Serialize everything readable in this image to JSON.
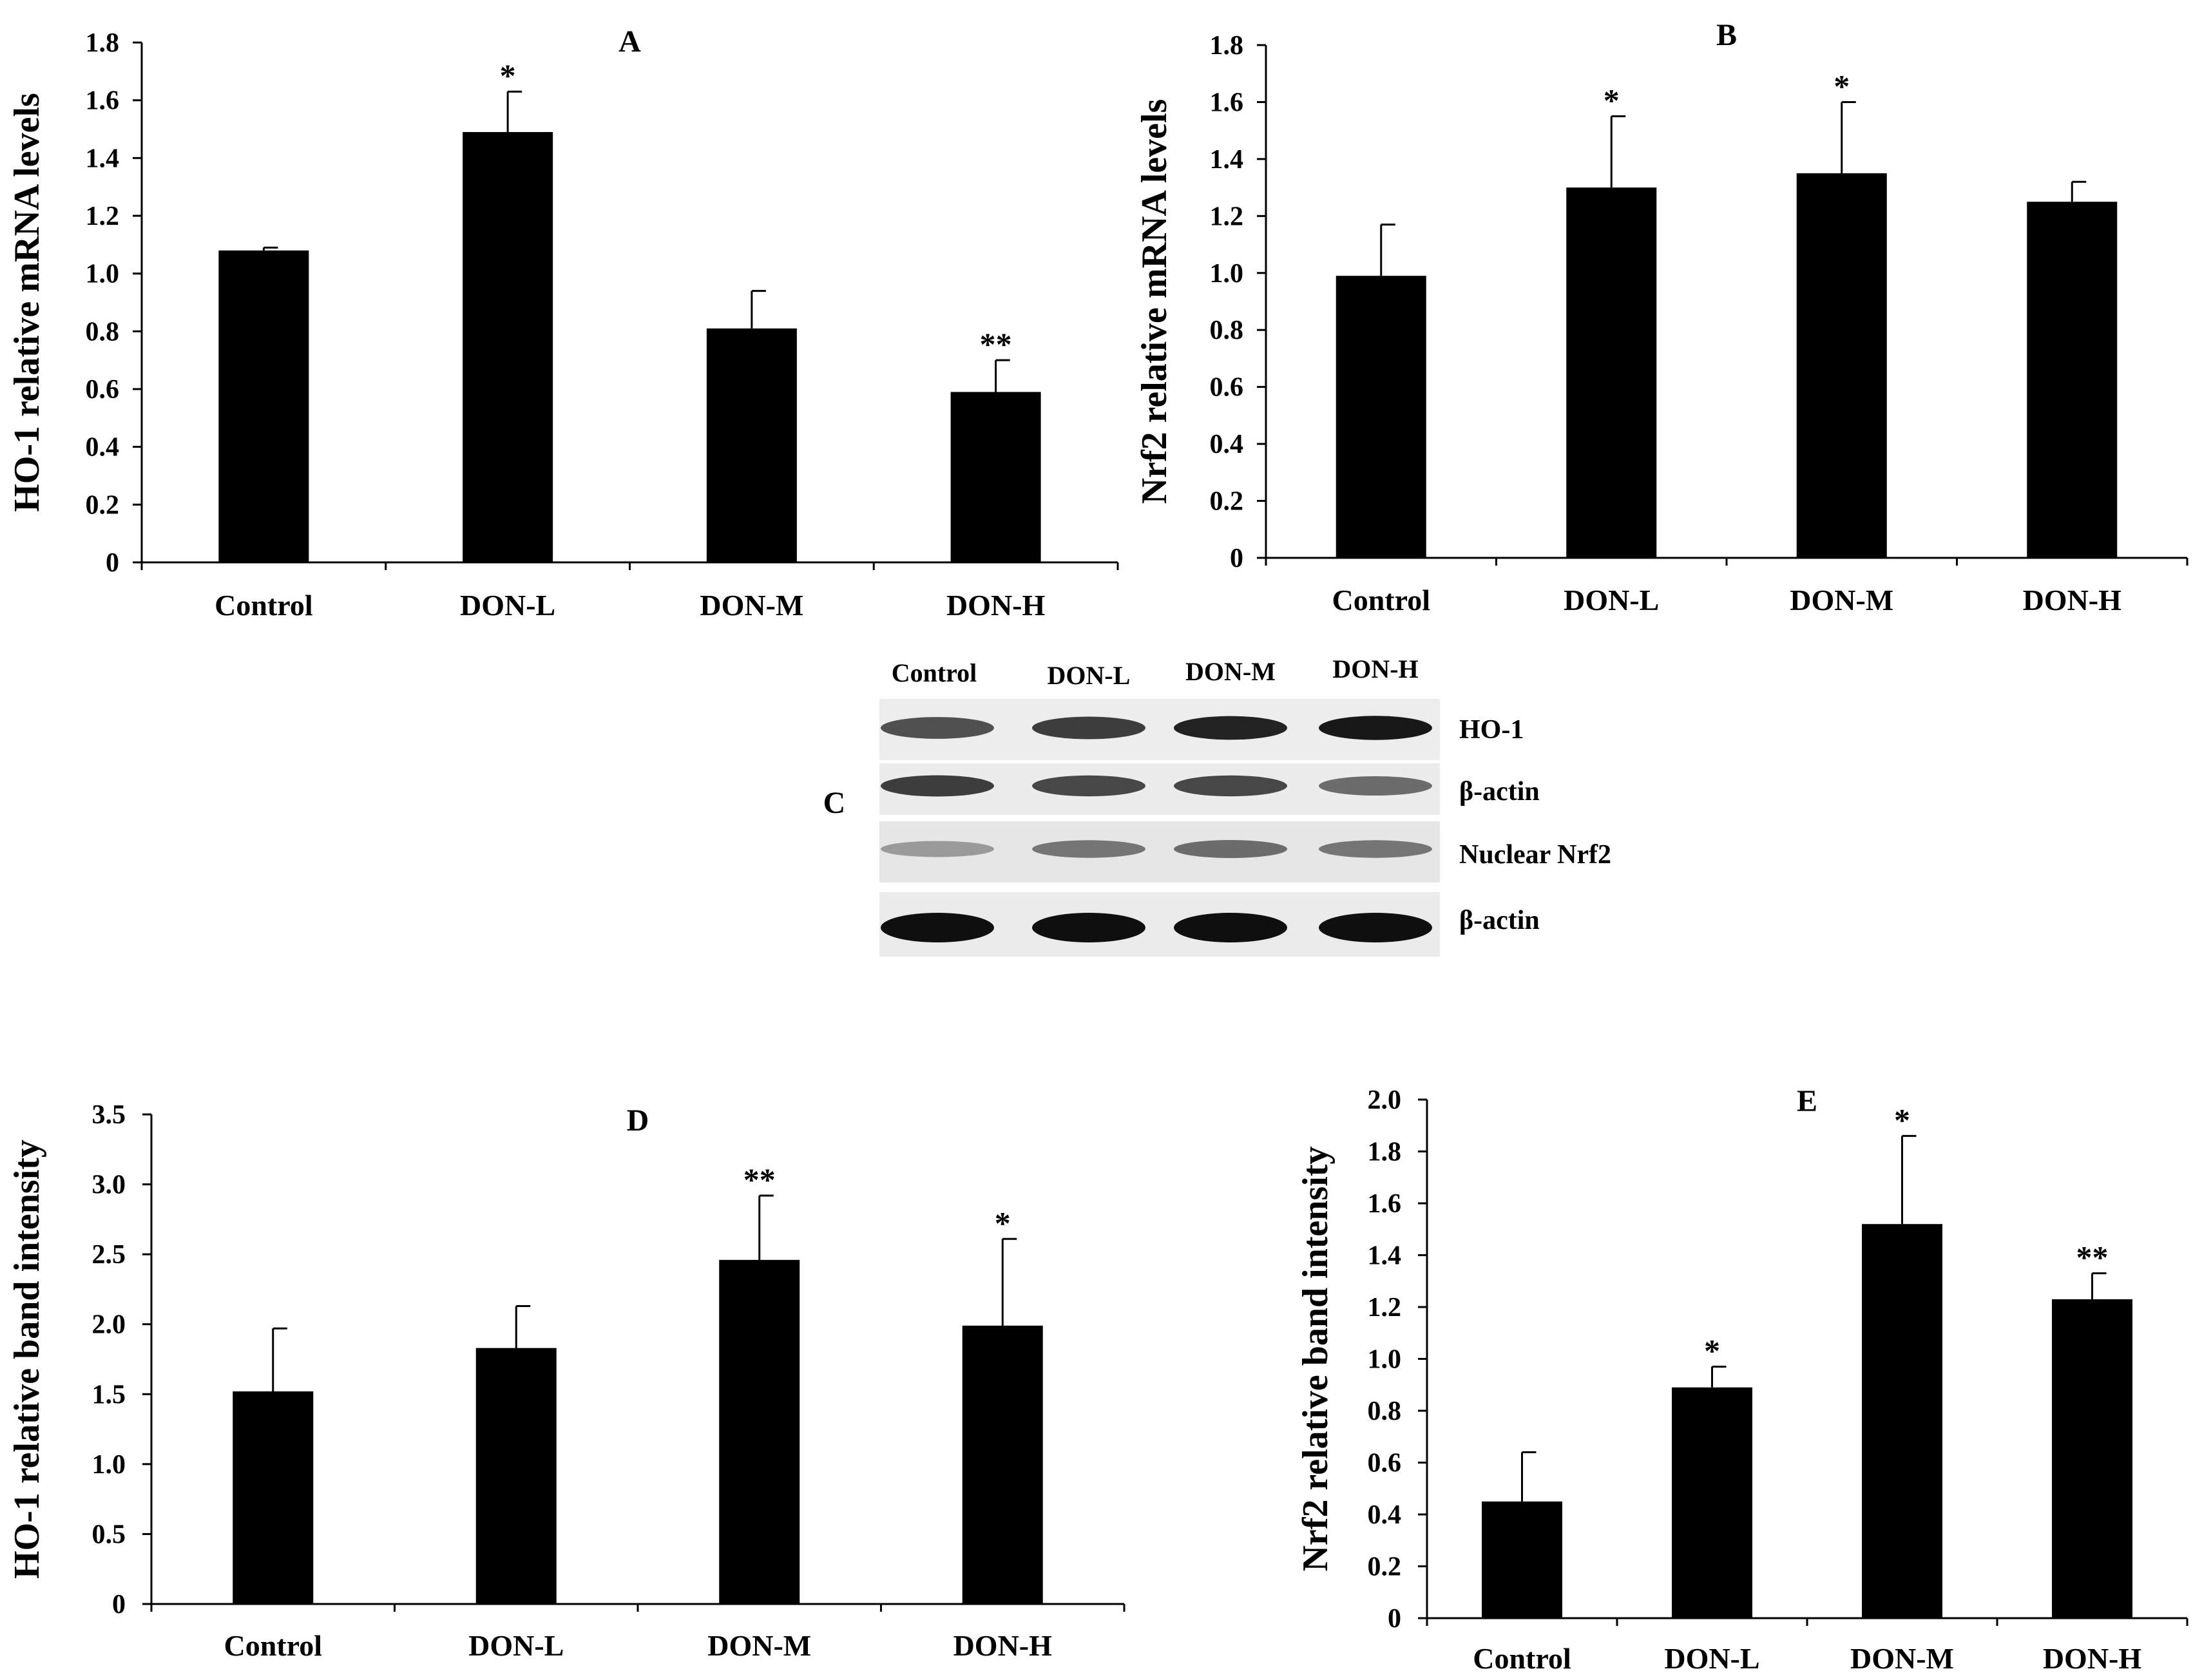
{
  "chart_data": [
    {
      "id": "A",
      "type": "bar",
      "title": "A",
      "ylabel": "HO-1 relative mRNA levels",
      "xlabel": "",
      "categories": [
        "Control",
        "DON-L",
        "DON-M",
        "DON-H"
      ],
      "values": [
        1.08,
        1.49,
        0.81,
        0.59
      ],
      "errors": [
        0.01,
        0.14,
        0.13,
        0.11
      ],
      "significance": [
        "",
        "*",
        "",
        "**"
      ],
      "ylim": [
        0,
        1.8
      ],
      "yticks": [
        "0",
        "0.2",
        "0.4",
        "0.6",
        "0.8",
        "1.0",
        "1.2",
        "1.4",
        "1.6",
        "1.8"
      ]
    },
    {
      "id": "B",
      "type": "bar",
      "title": "B",
      "ylabel": "Nrf2 relative mRNA levels",
      "xlabel": "",
      "categories": [
        "Control",
        "DON-L",
        "DON-M",
        "DON-H"
      ],
      "values": [
        0.99,
        1.3,
        1.35,
        1.25
      ],
      "errors": [
        0.18,
        0.25,
        0.25,
        0.07
      ],
      "significance": [
        "",
        "*",
        "*",
        ""
      ],
      "ylim": [
        0,
        1.8
      ],
      "yticks": [
        "0",
        "0.2",
        "0.4",
        "0.6",
        "0.8",
        "1.0",
        "1.2",
        "1.4",
        "1.6",
        "1.8"
      ]
    },
    {
      "id": "D",
      "type": "bar",
      "title": "D",
      "ylabel": "HO-1 relative band intensity",
      "xlabel": "",
      "categories": [
        "Control",
        "DON-L",
        "DON-M",
        "DON-H"
      ],
      "values": [
        1.52,
        1.83,
        2.46,
        1.99
      ],
      "errors": [
        0.45,
        0.3,
        0.46,
        0.62
      ],
      "significance": [
        "",
        "",
        "**",
        "*"
      ],
      "ylim": [
        0,
        3.5
      ],
      "yticks": [
        "0",
        "0.5",
        "1.0",
        "1.5",
        "2.0",
        "2.5",
        "3.0",
        "3.5"
      ]
    },
    {
      "id": "E",
      "type": "bar",
      "title": "E",
      "ylabel": "Nrf2 relative band intensity",
      "xlabel": "",
      "categories": [
        "Control",
        "DON-L",
        "DON-M",
        "DON-H"
      ],
      "values": [
        0.45,
        0.89,
        1.52,
        1.23
      ],
      "errors": [
        0.19,
        0.08,
        0.34,
        0.1
      ],
      "significance": [
        "",
        "*",
        "*",
        "**"
      ],
      "ylim": [
        0,
        2.0
      ],
      "yticks": [
        "0",
        "0.2",
        "0.4",
        "0.6",
        "0.8",
        "1.0",
        "1.2",
        "1.4",
        "1.6",
        "1.8",
        "2.0"
      ]
    }
  ],
  "blot": {
    "panel_label": "C",
    "lanes": [
      "Control",
      "DON-L",
      "DON-M",
      "DON-H"
    ],
    "rows": [
      {
        "label": "HO-1",
        "intensity": [
          0.65,
          0.75,
          0.9,
          0.95
        ]
      },
      {
        "label": "β-actin",
        "intensity": [
          0.75,
          0.7,
          0.7,
          0.5
        ]
      },
      {
        "label": "Nuclear Nrf2",
        "intensity": [
          0.25,
          0.45,
          0.5,
          0.45
        ]
      },
      {
        "label": "β-actin",
        "intensity": [
          1.0,
          1.0,
          1.0,
          1.0
        ]
      }
    ]
  },
  "colors": {
    "bar": "#000000",
    "axis": "#000000",
    "background": "#ffffff",
    "membrane": "#e9e9e9"
  }
}
